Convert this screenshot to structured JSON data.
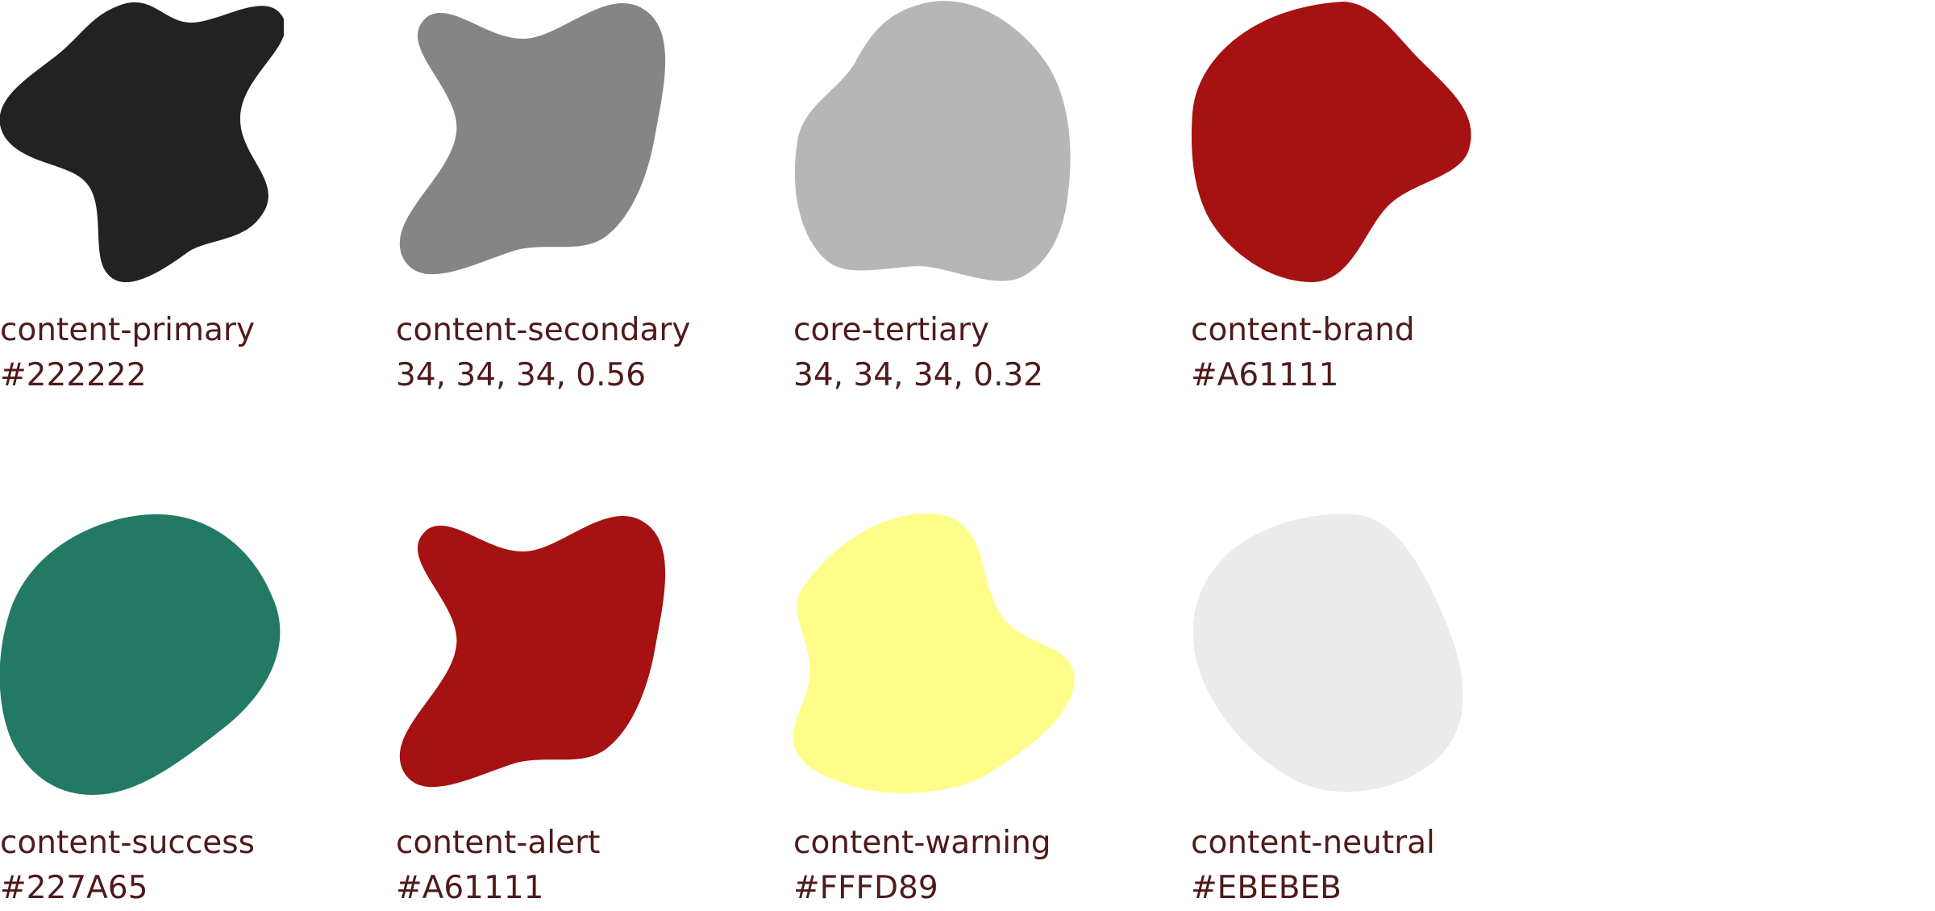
{
  "swatches": [
    {
      "name": "content-primary",
      "value": "#222222",
      "color": "#222222",
      "shape": "star-blob"
    },
    {
      "name": "content-secondary",
      "value": "34, 34, 34, 0.56",
      "color": "#858585",
      "shape": "wave-blob"
    },
    {
      "name": "core-tertiary",
      "value": "34, 34, 34, 0.32",
      "color": "#B6B6B6",
      "shape": "pear-blob"
    },
    {
      "name": "content-brand",
      "value": "#A61111",
      "color": "#A61111",
      "shape": "heart-blob"
    },
    {
      "name": "content-success",
      "value": "#227A65",
      "color": "#227A65",
      "shape": "round-blob"
    },
    {
      "name": "content-alert",
      "value": "#A61111",
      "color": "#A61111",
      "shape": "wave-blob"
    },
    {
      "name": "content-warning",
      "value": "#FFFD89",
      "color": "#FFFD89",
      "shape": "bean-blob"
    },
    {
      "name": "content-neutral",
      "value": "#EBEBEB",
      "color": "#EBEBEB",
      "shape": "egg-blob"
    }
  ]
}
